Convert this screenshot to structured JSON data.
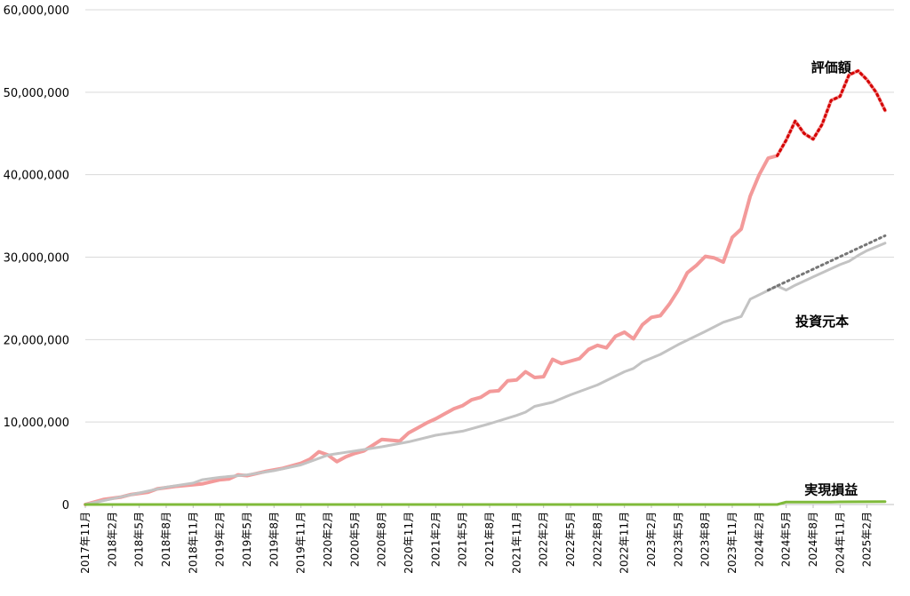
{
  "colors": {
    "valuation": "#f39a9a",
    "valuation_forecast": "#d40000",
    "principal": "#c3c3c3",
    "principal_forecast": "#767676",
    "realized": "#7fba3a",
    "grid": "#d9d9d9",
    "axis": "#bfbfbf"
  },
  "chart_data": {
    "type": "line",
    "title": "",
    "xlabel": "",
    "ylabel": "",
    "ylim": [
      0,
      60000000
    ],
    "yticks": [
      0,
      10000000,
      20000000,
      30000000,
      40000000,
      50000000,
      60000000
    ],
    "ytick_labels": [
      "0",
      "10,000,000",
      "20,000,000",
      "30,000,000",
      "40,000,000",
      "50,000,000",
      "60,000,000"
    ],
    "grid": true,
    "legend": "none",
    "x_start": "2017-11",
    "x_end": "2025-05",
    "x_tick_labels": [
      "2017年11月",
      "2018年2月",
      "2018年5月",
      "2018年8月",
      "2018年11月",
      "2019年2月",
      "2019年5月",
      "2019年8月",
      "2019年11月",
      "2020年2月",
      "2020年5月",
      "2020年8月",
      "2020年11月",
      "2021年2月",
      "2021年5月",
      "2021年8月",
      "2021年11月",
      "2022年2月",
      "2022年5月",
      "2022年8月",
      "2022年11月",
      "2023年2月",
      "2023年5月",
      "2023年8月",
      "2023年11月",
      "2024年2月",
      "2024年5月",
      "2024年8月",
      "2024年11月",
      "2025年2月"
    ],
    "series": [
      {
        "name": "評価額",
        "style": "solid",
        "points": [
          [
            "2017-11",
            0
          ],
          [
            "2018-01",
            600000
          ],
          [
            "2018-03",
            900000
          ],
          [
            "2018-04",
            1200000
          ],
          [
            "2018-06",
            1500000
          ],
          [
            "2018-07",
            1900000
          ],
          [
            "2018-09",
            2200000
          ],
          [
            "2018-11",
            2400000
          ],
          [
            "2018-12",
            2500000
          ],
          [
            "2019-02",
            3000000
          ],
          [
            "2019-03",
            3100000
          ],
          [
            "2019-04",
            3600000
          ],
          [
            "2019-05",
            3500000
          ],
          [
            "2019-07",
            4000000
          ],
          [
            "2019-09",
            4400000
          ],
          [
            "2019-11",
            5000000
          ],
          [
            "2019-12",
            5500000
          ],
          [
            "2020-01",
            6400000
          ],
          [
            "2020-02",
            6000000
          ],
          [
            "2020-03",
            5200000
          ],
          [
            "2020-04",
            5800000
          ],
          [
            "2020-05",
            6200000
          ],
          [
            "2020-06",
            6500000
          ],
          [
            "2020-07",
            7200000
          ],
          [
            "2020-08",
            7900000
          ],
          [
            "2020-09",
            7800000
          ],
          [
            "2020-10",
            7700000
          ],
          [
            "2020-11",
            8700000
          ],
          [
            "2020-12",
            9300000
          ],
          [
            "2021-01",
            9900000
          ],
          [
            "2021-02",
            10400000
          ],
          [
            "2021-03",
            11000000
          ],
          [
            "2021-04",
            11600000
          ],
          [
            "2021-05",
            12000000
          ],
          [
            "2021-06",
            12700000
          ],
          [
            "2021-07",
            13000000
          ],
          [
            "2021-08",
            13700000
          ],
          [
            "2021-09",
            13800000
          ],
          [
            "2021-10",
            15000000
          ],
          [
            "2021-11",
            15100000
          ],
          [
            "2021-12",
            16100000
          ],
          [
            "2022-01",
            15400000
          ],
          [
            "2022-02",
            15500000
          ],
          [
            "2022-03",
            17600000
          ],
          [
            "2022-04",
            17100000
          ],
          [
            "2022-05",
            17400000
          ],
          [
            "2022-06",
            17700000
          ],
          [
            "2022-07",
            18800000
          ],
          [
            "2022-08",
            19300000
          ],
          [
            "2022-09",
            19000000
          ],
          [
            "2022-10",
            20400000
          ],
          [
            "2022-11",
            20900000
          ],
          [
            "2022-12",
            20100000
          ],
          [
            "2023-01",
            21800000
          ],
          [
            "2023-02",
            22700000
          ],
          [
            "2023-03",
            22900000
          ],
          [
            "2023-04",
            24300000
          ],
          [
            "2023-05",
            26000000
          ],
          [
            "2023-06",
            28100000
          ],
          [
            "2023-07",
            29000000
          ],
          [
            "2023-08",
            30100000
          ],
          [
            "2023-09",
            29900000
          ],
          [
            "2023-10",
            29400000
          ],
          [
            "2023-11",
            32400000
          ],
          [
            "2023-12",
            33400000
          ],
          [
            "2024-01",
            37400000
          ],
          [
            "2024-02",
            40000000
          ],
          [
            "2024-03",
            42000000
          ],
          [
            "2024-04",
            42300000
          ],
          [
            "2024-05",
            44200000
          ],
          [
            "2024-06",
            46500000
          ],
          [
            "2024-07",
            45000000
          ],
          [
            "2024-08",
            44300000
          ],
          [
            "2024-09",
            46100000
          ],
          [
            "2024-10",
            49000000
          ],
          [
            "2024-11",
            49500000
          ],
          [
            "2024-12",
            52100000
          ],
          [
            "2025-01",
            52600000
          ],
          [
            "2025-02",
            51500000
          ],
          [
            "2025-03",
            50000000
          ],
          [
            "2025-04",
            47800000
          ]
        ]
      },
      {
        "name": "評価額_forecast",
        "style": "dotted",
        "points": [
          [
            "2024-04",
            42300000
          ],
          [
            "2024-05",
            44200000
          ],
          [
            "2024-06",
            46500000
          ],
          [
            "2024-07",
            45000000
          ],
          [
            "2024-08",
            44300000
          ],
          [
            "2024-09",
            46100000
          ],
          [
            "2024-10",
            49000000
          ],
          [
            "2024-11",
            49500000
          ],
          [
            "2024-12",
            52100000
          ],
          [
            "2025-01",
            52600000
          ],
          [
            "2025-02",
            51500000
          ],
          [
            "2025-03",
            50000000
          ],
          [
            "2025-04",
            47800000
          ]
        ]
      },
      {
        "name": "投資元本",
        "style": "solid",
        "points": [
          [
            "2017-11",
            0
          ],
          [
            "2018-02",
            700000
          ],
          [
            "2018-05",
            1400000
          ],
          [
            "2018-08",
            2100000
          ],
          [
            "2018-11",
            2600000
          ],
          [
            "2018-12",
            3000000
          ],
          [
            "2019-02",
            3300000
          ],
          [
            "2019-05",
            3600000
          ],
          [
            "2019-08",
            4100000
          ],
          [
            "2019-11",
            4800000
          ],
          [
            "2020-02",
            6000000
          ],
          [
            "2020-05",
            6500000
          ],
          [
            "2020-08",
            7000000
          ],
          [
            "2020-11",
            7600000
          ],
          [
            "2021-02",
            8400000
          ],
          [
            "2021-05",
            8900000
          ],
          [
            "2021-08",
            9800000
          ],
          [
            "2021-11",
            10800000
          ],
          [
            "2021-12",
            11200000
          ],
          [
            "2022-01",
            11900000
          ],
          [
            "2022-03",
            12400000
          ],
          [
            "2022-05",
            13300000
          ],
          [
            "2022-08",
            14500000
          ],
          [
            "2022-11",
            16100000
          ],
          [
            "2022-12",
            16500000
          ],
          [
            "2023-01",
            17300000
          ],
          [
            "2023-03",
            18200000
          ],
          [
            "2023-05",
            19400000
          ],
          [
            "2023-08",
            21000000
          ],
          [
            "2023-10",
            22100000
          ],
          [
            "2023-12",
            22800000
          ],
          [
            "2024-01",
            24900000
          ],
          [
            "2024-04",
            26500000
          ],
          [
            "2024-05",
            26000000
          ],
          [
            "2024-06",
            26600000
          ],
          [
            "2024-08",
            27600000
          ],
          [
            "2024-11",
            29100000
          ],
          [
            "2024-12",
            29500000
          ],
          [
            "2025-01",
            30200000
          ],
          [
            "2025-02",
            30800000
          ],
          [
            "2025-04",
            31700000
          ]
        ]
      },
      {
        "name": "投資元本_forecast",
        "style": "dotted",
        "points": [
          [
            "2024-03",
            26000000
          ],
          [
            "2025-04",
            32600000
          ]
        ]
      },
      {
        "name": "実現損益",
        "style": "solid",
        "points": [
          [
            "2017-11",
            0
          ],
          [
            "2024-04",
            0
          ],
          [
            "2024-05",
            300000
          ],
          [
            "2024-10",
            300000
          ],
          [
            "2024-11",
            320000
          ],
          [
            "2025-04",
            350000
          ]
        ]
      }
    ],
    "annotations": [
      {
        "text": "評価額",
        "at": [
          "2024-10",
          53000000
        ]
      },
      {
        "text": "投資元本",
        "at": [
          "2024-09",
          22200000
        ]
      },
      {
        "text": "実現損益",
        "at": [
          "2024-10",
          1800000
        ]
      }
    ]
  }
}
